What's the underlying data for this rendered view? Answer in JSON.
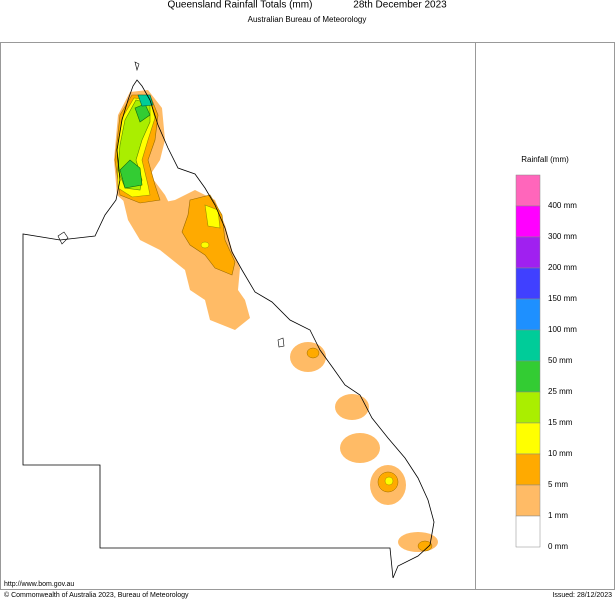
{
  "header": {
    "title": "Queensland Rainfall Totals (mm)",
    "date": "28th December 2023",
    "subtitle": "Australian Bureau of Meteorology"
  },
  "legend": {
    "title": "Rainfall (mm)",
    "items": [
      {
        "label": "400 mm",
        "color": "#ff66bb"
      },
      {
        "label": "300 mm",
        "color": "#ff00ff"
      },
      {
        "label": "200 mm",
        "color": "#a020f0"
      },
      {
        "label": "150 mm",
        "color": "#4040ff"
      },
      {
        "label": "100 mm",
        "color": "#1e90ff"
      },
      {
        "label": "50 mm",
        "color": "#00cc99"
      },
      {
        "label": "25 mm",
        "color": "#33cc33"
      },
      {
        "label": "15 mm",
        "color": "#aaee00"
      },
      {
        "label": "10 mm",
        "color": "#ffff00"
      },
      {
        "label": "5 mm",
        "color": "#ffaa00"
      },
      {
        "label": "1 mm",
        "color": "#ffbb66"
      },
      {
        "label": "0 mm",
        "color": "#ffffff"
      }
    ]
  },
  "footer": {
    "url": "http://www.bom.gov.au",
    "copyright": "© Commonwealth of Australia 2023, Bureau of Meteorology",
    "issued": "Issued: 28/12/2023"
  }
}
